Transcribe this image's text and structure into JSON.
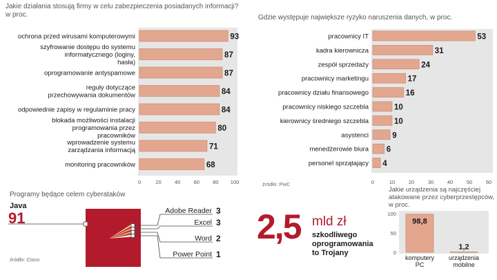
{
  "colors": {
    "bar": "#e3a78f",
    "bar_stroke": "#c97f65",
    "panel": "#e6e6e6",
    "red": "#b31b2c",
    "dark_red": "#8e1424"
  },
  "left_chart": {
    "title": "Jakie działania stosują firmy w celu zabezpieczenia posiadanych informacji?",
    "unit": "w proc.",
    "ticks": [
      "0",
      "20",
      "40",
      "60",
      "80",
      "100"
    ]
  },
  "right_chart": {
    "title": "Gdzie występuje największe ryzyko naruszenia danych, w proc.",
    "ticks": [
      "0",
      "10",
      "20",
      "30",
      "40",
      "50",
      "60"
    ],
    "source": "źródło: PwC"
  },
  "programs": {
    "title": "Programy będące celem cyberataków",
    "java_label": "Java",
    "java_value": "91",
    "source": "źródło: Cisco",
    "items": [
      {
        "label": "Adobe Reader",
        "value": "3"
      },
      {
        "label": "Excel",
        "value": "3"
      },
      {
        "label": "Word",
        "value": "2"
      },
      {
        "label": "Power Point",
        "value": "1"
      }
    ]
  },
  "headline": {
    "number": "2,5",
    "unit": "mld zł",
    "lines": [
      "szkodliwego",
      "oprogramowania",
      "to Trojany"
    ]
  },
  "devices": {
    "title_lines": [
      "Jakie urządzenia są najczęściej",
      "atakowane przez cyberprzestępców,",
      "w proc."
    ],
    "ticks": [
      "0",
      "50",
      "100"
    ]
  },
  "chart_data": [
    {
      "type": "bar",
      "orientation": "horizontal",
      "title": "Jakie działania stosują firmy w celu zabezpieczenia posiadanych informacji?",
      "ylabel": "w proc.",
      "xlim": [
        0,
        100
      ],
      "categories": [
        "ochrona przed wirusami komputerowymi",
        "szyfrowanie dostępu do systemu informatycznego (loginy, hasła)",
        "oprogramowanie antyspamowe",
        "reguły dotyczące przechowywania dokumentów",
        "odpowiednie zapisy w regulaminie pracy",
        "blokada możliwości instalacji programowania przez pracowników",
        "wprowadzenie systemu zarządzania informacją",
        "monitoring pracowników"
      ],
      "values": [
        93,
        87,
        87,
        84,
        84,
        80,
        71,
        68
      ]
    },
    {
      "type": "bar",
      "orientation": "horizontal",
      "title": "Gdzie występuje największe ryzyko naruszenia danych, w proc.",
      "xlim": [
        0,
        60
      ],
      "categories": [
        "pracownicy IT",
        "kadra kierownicza",
        "zespół sprzedaży",
        "pracownicy marketingu",
        "pracownicy działu finansowego",
        "pracownicy niskiego szczebla",
        "kierownicy średniego szczebla",
        "asystenci",
        "menedżerowie biura",
        "personel sprzątający"
      ],
      "values": [
        53,
        31,
        24,
        17,
        16,
        10,
        10,
        9,
        6,
        4
      ]
    },
    {
      "type": "bar",
      "title": "Jakie urządzenia są najczęściej atakowane przez cyberprzestępców, w proc.",
      "categories": [
        "komputery PC",
        "urządzenia mobilne"
      ],
      "category_lines": [
        [
          "komputery",
          "PC"
        ],
        [
          "urządzenia",
          "mobilne"
        ]
      ],
      "values": [
        "98,8",
        "1,2"
      ],
      "ylim": [
        0,
        100
      ]
    }
  ]
}
